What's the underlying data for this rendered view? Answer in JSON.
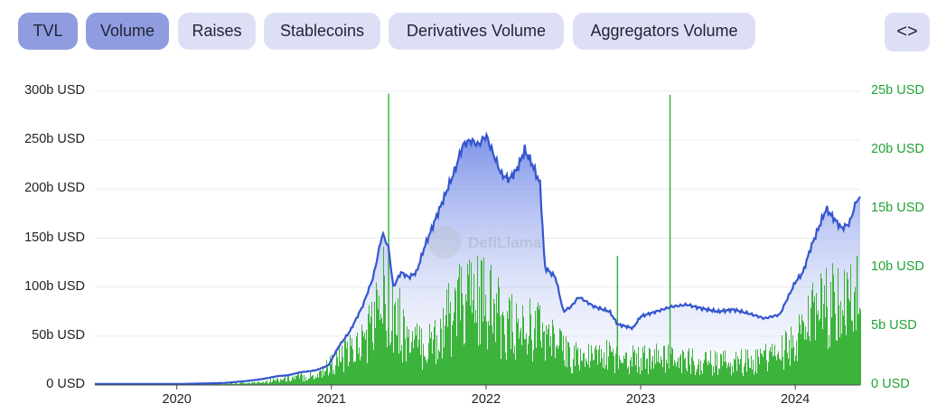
{
  "tabs": [
    {
      "label": "TVL",
      "active": true
    },
    {
      "label": "Volume",
      "active": true
    },
    {
      "label": "Raises",
      "active": false
    },
    {
      "label": "Stablecoins",
      "active": false
    },
    {
      "label": "Derivatives Volume",
      "active": false
    },
    {
      "label": "Aggregators Volume",
      "active": false
    }
  ],
  "embed_button": {
    "icon": "code-icon",
    "label": "<>"
  },
  "watermark": {
    "text": "DefiLlama"
  },
  "colors": {
    "tvl_line": "#3356cf",
    "volume_bar": "#3cb43c",
    "right_axis": "#22a336",
    "tab_active": "#8f9ce0",
    "tab_inactive": "#dde0f5"
  },
  "chart_data": {
    "type": "line",
    "x_ticks": [
      "2020",
      "2021",
      "2022",
      "2023",
      "2024"
    ],
    "y_left": {
      "ticks": [
        "0 USD",
        "50b USD",
        "100b USD",
        "150b USD",
        "200b USD",
        "250b USD",
        "300b USD"
      ],
      "range": [
        0,
        300
      ],
      "unit": "b USD"
    },
    "y_right": {
      "ticks": [
        "0 USD",
        "5b USD",
        "10b USD",
        "15b USD",
        "20b USD",
        "25b USD"
      ],
      "range": [
        0,
        25
      ],
      "unit": "b USD"
    },
    "x_range": [
      2019.47,
      2024.42
    ],
    "grid": true,
    "series": [
      {
        "axis": "left",
        "style": "line-with-area",
        "points": [
          [
            2019.47,
            1
          ],
          [
            2019.7,
            1
          ],
          [
            2020.0,
            1
          ],
          [
            2020.3,
            2
          ],
          [
            2020.45,
            4
          ],
          [
            2020.55,
            6
          ],
          [
            2020.65,
            9
          ],
          [
            2020.72,
            10
          ],
          [
            2020.8,
            13
          ],
          [
            2020.9,
            15
          ],
          [
            2020.98,
            20
          ],
          [
            2021.05,
            40
          ],
          [
            2021.12,
            55
          ],
          [
            2021.2,
            80
          ],
          [
            2021.27,
            110
          ],
          [
            2021.33,
            155
          ],
          [
            2021.37,
            140
          ],
          [
            2021.4,
            100
          ],
          [
            2021.45,
            115
          ],
          [
            2021.5,
            110
          ],
          [
            2021.55,
            115
          ],
          [
            2021.6,
            140
          ],
          [
            2021.65,
            160
          ],
          [
            2021.7,
            180
          ],
          [
            2021.75,
            200
          ],
          [
            2021.8,
            220
          ],
          [
            2021.85,
            245
          ],
          [
            2021.9,
            250
          ],
          [
            2021.95,
            245
          ],
          [
            2022.0,
            255
          ],
          [
            2022.05,
            235
          ],
          [
            2022.1,
            215
          ],
          [
            2022.15,
            210
          ],
          [
            2022.2,
            220
          ],
          [
            2022.25,
            240
          ],
          [
            2022.3,
            225
          ],
          [
            2022.35,
            205
          ],
          [
            2022.38,
            120
          ],
          [
            2022.45,
            110
          ],
          [
            2022.5,
            75
          ],
          [
            2022.55,
            80
          ],
          [
            2022.6,
            90
          ],
          [
            2022.65,
            85
          ],
          [
            2022.7,
            80
          ],
          [
            2022.8,
            75
          ],
          [
            2022.85,
            62
          ],
          [
            2022.9,
            60
          ],
          [
            2022.95,
            58
          ],
          [
            2023.0,
            70
          ],
          [
            2023.1,
            75
          ],
          [
            2023.2,
            80
          ],
          [
            2023.3,
            82
          ],
          [
            2023.4,
            78
          ],
          [
            2023.5,
            75
          ],
          [
            2023.6,
            77
          ],
          [
            2023.7,
            73
          ],
          [
            2023.8,
            68
          ],
          [
            2023.9,
            72
          ],
          [
            2024.0,
            105
          ],
          [
            2024.05,
            115
          ],
          [
            2024.1,
            140
          ],
          [
            2024.15,
            160
          ],
          [
            2024.2,
            180
          ],
          [
            2024.25,
            170
          ],
          [
            2024.3,
            160
          ],
          [
            2024.35,
            165
          ],
          [
            2024.4,
            190
          ],
          [
            2024.42,
            190
          ]
        ]
      },
      {
        "axis": "right",
        "style": "bars",
        "points": [
          [
            2019.47,
            0.0
          ],
          [
            2020.0,
            0.01
          ],
          [
            2020.5,
            0.2
          ],
          [
            2020.7,
            0.6
          ],
          [
            2020.9,
            0.9
          ],
          [
            2021.0,
            2.0
          ],
          [
            2021.1,
            2.8
          ],
          [
            2021.2,
            4.0
          ],
          [
            2021.3,
            7.0
          ],
          [
            2021.35,
            9.0
          ],
          [
            2021.37,
            24.8
          ],
          [
            2021.4,
            7.0
          ],
          [
            2021.5,
            4.0
          ],
          [
            2021.6,
            3.5
          ],
          [
            2021.7,
            5.0
          ],
          [
            2021.8,
            7.0
          ],
          [
            2021.9,
            8.0
          ],
          [
            2022.0,
            7.5
          ],
          [
            2022.1,
            6.0
          ],
          [
            2022.2,
            5.0
          ],
          [
            2022.3,
            5.5
          ],
          [
            2022.4,
            4.5
          ],
          [
            2022.5,
            3.0
          ],
          [
            2022.6,
            2.6
          ],
          [
            2022.7,
            2.4
          ],
          [
            2022.75,
            2.8
          ],
          [
            2022.85,
            11.0
          ],
          [
            2022.9,
            2.6
          ],
          [
            2023.0,
            2.4
          ],
          [
            2023.1,
            2.5
          ],
          [
            2023.19,
            24.7
          ],
          [
            2023.2,
            2.4
          ],
          [
            2023.3,
            2.2
          ],
          [
            2023.5,
            2.0
          ],
          [
            2023.7,
            2.2
          ],
          [
            2023.9,
            2.8
          ],
          [
            2024.0,
            4.0
          ],
          [
            2024.1,
            6.0
          ],
          [
            2024.2,
            7.0
          ],
          [
            2024.3,
            8.0
          ],
          [
            2024.4,
            11.0
          ],
          [
            2024.42,
            6.0
          ]
        ]
      }
    ]
  }
}
